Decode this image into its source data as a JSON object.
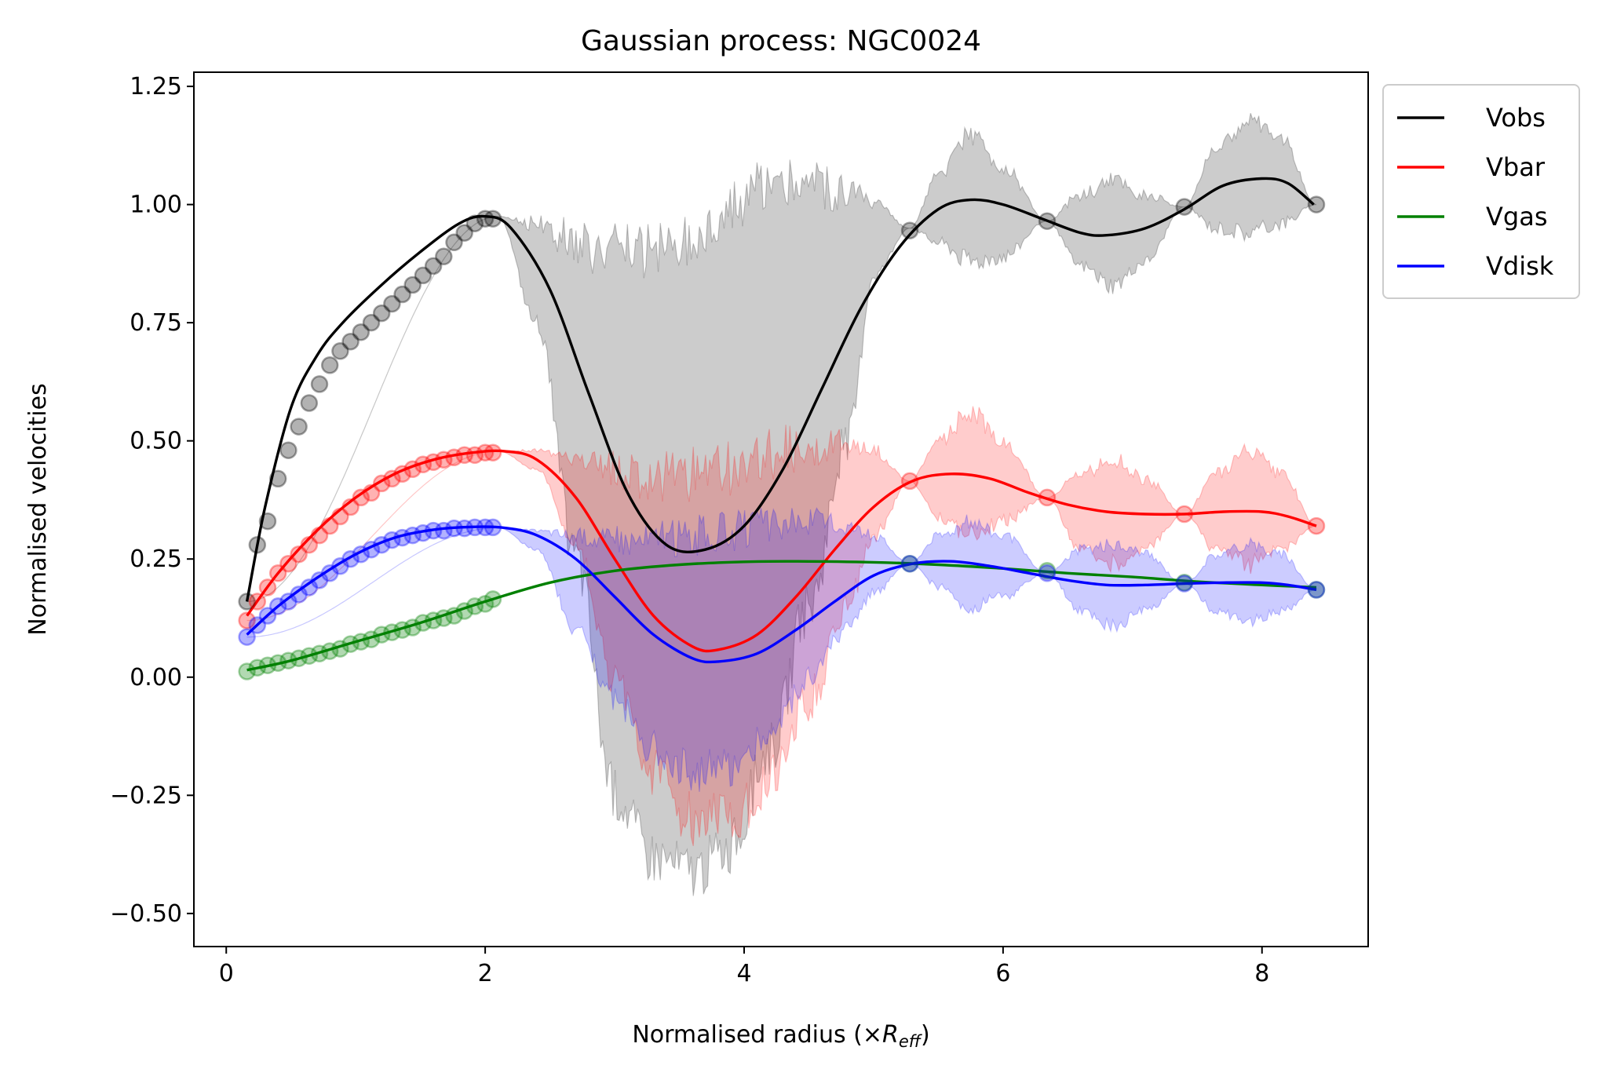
{
  "chart_data": {
    "type": "line",
    "title": "Gaussian process: NGC0024",
    "xlabel_prefix": "Normalised radius (×",
    "xlabel_var": "R",
    "xlabel_sub": "eff",
    "xlabel_suffix": ")",
    "ylabel": "Normalised velocities",
    "xlim": [
      -0.25,
      8.82
    ],
    "ylim": [
      -0.57,
      1.28
    ],
    "xticks": [
      0,
      2,
      4,
      6,
      8
    ],
    "xtick_labels": [
      "0",
      "2",
      "4",
      "6",
      "8"
    ],
    "yticks": [
      -0.5,
      -0.25,
      0.0,
      0.25,
      0.5,
      0.75,
      1.0,
      1.25
    ],
    "ytick_labels": [
      "−0.50",
      "−0.25",
      "0.00",
      "0.25",
      "0.50",
      "0.75",
      "1.00",
      "1.25"
    ],
    "legend_position": "outside-top-right",
    "series": [
      {
        "name": "Vobs",
        "color": "#000000",
        "curve": [
          [
            0.16,
            0.16
          ],
          [
            0.3,
            0.36
          ],
          [
            0.5,
            0.57
          ],
          [
            0.7,
            0.68
          ],
          [
            0.9,
            0.75
          ],
          [
            1.2,
            0.83
          ],
          [
            1.5,
            0.9
          ],
          [
            1.8,
            0.96
          ],
          [
            2.0,
            0.975
          ],
          [
            2.2,
            0.95
          ],
          [
            2.5,
            0.82
          ],
          [
            2.8,
            0.6
          ],
          [
            3.1,
            0.39
          ],
          [
            3.4,
            0.28
          ],
          [
            3.7,
            0.27
          ],
          [
            4.0,
            0.32
          ],
          [
            4.3,
            0.44
          ],
          [
            4.6,
            0.61
          ],
          [
            4.9,
            0.78
          ],
          [
            5.2,
            0.91
          ],
          [
            5.5,
            0.99
          ],
          [
            5.75,
            1.01
          ],
          [
            6.0,
            1.0
          ],
          [
            6.3,
            0.97
          ],
          [
            6.6,
            0.94
          ],
          [
            6.8,
            0.935
          ],
          [
            7.1,
            0.95
          ],
          [
            7.4,
            0.99
          ],
          [
            7.7,
            1.04
          ],
          [
            8.0,
            1.055
          ],
          [
            8.2,
            1.045
          ],
          [
            8.4,
            1.0
          ]
        ],
        "points": [
          [
            0.16,
            0.16
          ],
          [
            0.24,
            0.28
          ],
          [
            0.32,
            0.33
          ],
          [
            0.4,
            0.42
          ],
          [
            0.48,
            0.48
          ],
          [
            0.56,
            0.53
          ],
          [
            0.64,
            0.58
          ],
          [
            0.72,
            0.62
          ],
          [
            0.8,
            0.66
          ],
          [
            0.88,
            0.69
          ],
          [
            0.96,
            0.71
          ],
          [
            1.04,
            0.73
          ],
          [
            1.12,
            0.75
          ],
          [
            1.2,
            0.77
          ],
          [
            1.28,
            0.79
          ],
          [
            1.36,
            0.81
          ],
          [
            1.44,
            0.83
          ],
          [
            1.52,
            0.85
          ],
          [
            1.6,
            0.87
          ],
          [
            1.68,
            0.89
          ],
          [
            1.76,
            0.92
          ],
          [
            1.84,
            0.94
          ],
          [
            1.92,
            0.96
          ],
          [
            2.0,
            0.97
          ],
          [
            2.06,
            0.97
          ],
          [
            5.28,
            0.945
          ],
          [
            6.34,
            0.965
          ],
          [
            7.4,
            0.995
          ],
          [
            8.42,
            1.0
          ]
        ],
        "band": {
          "x": [
            0.16,
            2.1,
            2.4,
            2.7,
            3.0,
            3.3,
            3.6,
            3.9,
            4.2,
            4.5,
            4.8,
            5.0,
            5.28,
            5.5,
            5.75,
            6.0,
            6.34,
            6.6,
            6.85,
            7.1,
            7.4,
            7.65,
            7.9,
            8.15,
            8.42
          ],
          "upper": [
            0.16,
            0.975,
            0.96,
            0.92,
            0.9,
            0.9,
            0.93,
            1.0,
            1.04,
            1.04,
            1.02,
            1.0,
            0.95,
            1.06,
            1.15,
            1.08,
            0.965,
            1.02,
            1.05,
            1.02,
            0.995,
            1.12,
            1.18,
            1.14,
            1.0
          ],
          "lower": [
            0.16,
            0.975,
            0.75,
            0.25,
            -0.25,
            -0.38,
            -0.41,
            -0.36,
            -0.15,
            0.15,
            0.5,
            0.85,
            0.95,
            0.92,
            0.88,
            0.89,
            0.965,
            0.87,
            0.83,
            0.88,
            0.995,
            0.95,
            0.94,
            0.96,
            1.0
          ]
        }
      },
      {
        "name": "Vbar",
        "color": "#ff0000",
        "curve": [
          [
            0.16,
            0.13
          ],
          [
            0.4,
            0.22
          ],
          [
            0.7,
            0.31
          ],
          [
            1.0,
            0.38
          ],
          [
            1.3,
            0.43
          ],
          [
            1.6,
            0.46
          ],
          [
            1.9,
            0.475
          ],
          [
            2.15,
            0.478
          ],
          [
            2.4,
            0.46
          ],
          [
            2.7,
            0.38
          ],
          [
            3.0,
            0.25
          ],
          [
            3.3,
            0.13
          ],
          [
            3.6,
            0.065
          ],
          [
            3.8,
            0.058
          ],
          [
            4.1,
            0.09
          ],
          [
            4.4,
            0.17
          ],
          [
            4.7,
            0.27
          ],
          [
            5.0,
            0.36
          ],
          [
            5.3,
            0.415
          ],
          [
            5.6,
            0.43
          ],
          [
            5.9,
            0.42
          ],
          [
            6.2,
            0.39
          ],
          [
            6.5,
            0.365
          ],
          [
            6.8,
            0.35
          ],
          [
            7.1,
            0.345
          ],
          [
            7.4,
            0.345
          ],
          [
            7.7,
            0.35
          ],
          [
            8.0,
            0.35
          ],
          [
            8.2,
            0.34
          ],
          [
            8.42,
            0.32
          ]
        ],
        "points": [
          [
            0.16,
            0.12
          ],
          [
            0.24,
            0.16
          ],
          [
            0.32,
            0.19
          ],
          [
            0.4,
            0.22
          ],
          [
            0.48,
            0.24
          ],
          [
            0.56,
            0.26
          ],
          [
            0.64,
            0.28
          ],
          [
            0.72,
            0.3
          ],
          [
            0.8,
            0.32
          ],
          [
            0.88,
            0.34
          ],
          [
            0.96,
            0.36
          ],
          [
            1.04,
            0.38
          ],
          [
            1.12,
            0.39
          ],
          [
            1.2,
            0.41
          ],
          [
            1.28,
            0.42
          ],
          [
            1.36,
            0.43
          ],
          [
            1.44,
            0.44
          ],
          [
            1.52,
            0.45
          ],
          [
            1.6,
            0.455
          ],
          [
            1.68,
            0.46
          ],
          [
            1.76,
            0.465
          ],
          [
            1.84,
            0.47
          ],
          [
            1.92,
            0.47
          ],
          [
            2.0,
            0.475
          ],
          [
            2.06,
            0.475
          ],
          [
            5.28,
            0.415
          ],
          [
            6.34,
            0.38
          ],
          [
            7.4,
            0.345
          ],
          [
            8.42,
            0.32
          ]
        ],
        "band": {
          "x": [
            0.16,
            2.1,
            2.4,
            2.7,
            3.0,
            3.3,
            3.6,
            3.9,
            4.2,
            4.5,
            4.8,
            5.0,
            5.28,
            5.5,
            5.75,
            6.0,
            6.34,
            6.6,
            6.85,
            7.1,
            7.4,
            7.65,
            7.9,
            8.15,
            8.42
          ],
          "upper": [
            0.12,
            0.478,
            0.48,
            0.46,
            0.44,
            0.42,
            0.43,
            0.44,
            0.47,
            0.49,
            0.5,
            0.48,
            0.415,
            0.5,
            0.56,
            0.5,
            0.38,
            0.43,
            0.46,
            0.42,
            0.345,
            0.43,
            0.48,
            0.43,
            0.32
          ],
          "lower": [
            0.12,
            0.478,
            0.44,
            0.28,
            0.0,
            -0.2,
            -0.3,
            -0.3,
            -0.22,
            -0.05,
            0.15,
            0.3,
            0.415,
            0.34,
            0.3,
            0.33,
            0.38,
            0.27,
            0.24,
            0.27,
            0.345,
            0.27,
            0.24,
            0.27,
            0.32
          ]
        }
      },
      {
        "name": "Vgas",
        "color": "#008000",
        "curve": [
          [
            0.16,
            0.015
          ],
          [
            0.5,
            0.035
          ],
          [
            1.0,
            0.075
          ],
          [
            1.5,
            0.115
          ],
          [
            2.0,
            0.16
          ],
          [
            2.5,
            0.2
          ],
          [
            3.0,
            0.225
          ],
          [
            3.5,
            0.238
          ],
          [
            4.0,
            0.244
          ],
          [
            4.4,
            0.245
          ],
          [
            5.0,
            0.243
          ],
          [
            5.5,
            0.238
          ],
          [
            6.0,
            0.23
          ],
          [
            6.5,
            0.22
          ],
          [
            7.0,
            0.212
          ],
          [
            7.5,
            0.202
          ],
          [
            8.0,
            0.195
          ],
          [
            8.42,
            0.19
          ]
        ],
        "points": [
          [
            0.16,
            0.012
          ],
          [
            0.24,
            0.02
          ],
          [
            0.32,
            0.025
          ],
          [
            0.4,
            0.03
          ],
          [
            0.48,
            0.035
          ],
          [
            0.56,
            0.04
          ],
          [
            0.64,
            0.045
          ],
          [
            0.72,
            0.05
          ],
          [
            0.8,
            0.055
          ],
          [
            0.88,
            0.06
          ],
          [
            0.96,
            0.07
          ],
          [
            1.04,
            0.075
          ],
          [
            1.12,
            0.08
          ],
          [
            1.2,
            0.09
          ],
          [
            1.28,
            0.095
          ],
          [
            1.36,
            0.1
          ],
          [
            1.44,
            0.105
          ],
          [
            1.52,
            0.115
          ],
          [
            1.6,
            0.12
          ],
          [
            1.68,
            0.125
          ],
          [
            1.76,
            0.13
          ],
          [
            1.84,
            0.14
          ],
          [
            1.92,
            0.15
          ],
          [
            2.0,
            0.155
          ],
          [
            2.06,
            0.165
          ],
          [
            5.28,
            0.24
          ],
          [
            6.34,
            0.225
          ],
          [
            7.4,
            0.2
          ],
          [
            8.42,
            0.185
          ]
        ]
      },
      {
        "name": "Vdisk",
        "color": "#0000ff",
        "curve": [
          [
            0.16,
            0.09
          ],
          [
            0.4,
            0.15
          ],
          [
            0.7,
            0.21
          ],
          [
            1.0,
            0.26
          ],
          [
            1.3,
            0.295
          ],
          [
            1.6,
            0.312
          ],
          [
            1.9,
            0.318
          ],
          [
            2.15,
            0.316
          ],
          [
            2.4,
            0.3
          ],
          [
            2.7,
            0.25
          ],
          [
            3.0,
            0.17
          ],
          [
            3.3,
            0.09
          ],
          [
            3.6,
            0.04
          ],
          [
            3.8,
            0.033
          ],
          [
            4.1,
            0.05
          ],
          [
            4.4,
            0.1
          ],
          [
            4.7,
            0.16
          ],
          [
            5.0,
            0.215
          ],
          [
            5.3,
            0.24
          ],
          [
            5.6,
            0.245
          ],
          [
            5.9,
            0.235
          ],
          [
            6.2,
            0.22
          ],
          [
            6.5,
            0.205
          ],
          [
            6.8,
            0.195
          ],
          [
            7.1,
            0.195
          ],
          [
            7.4,
            0.198
          ],
          [
            7.7,
            0.2
          ],
          [
            8.0,
            0.2
          ],
          [
            8.2,
            0.195
          ],
          [
            8.42,
            0.185
          ]
        ],
        "points": [
          [
            0.16,
            0.085
          ],
          [
            0.24,
            0.11
          ],
          [
            0.32,
            0.13
          ],
          [
            0.4,
            0.15
          ],
          [
            0.48,
            0.16
          ],
          [
            0.56,
            0.175
          ],
          [
            0.64,
            0.19
          ],
          [
            0.72,
            0.205
          ],
          [
            0.8,
            0.22
          ],
          [
            0.88,
            0.235
          ],
          [
            0.96,
            0.25
          ],
          [
            1.04,
            0.26
          ],
          [
            1.12,
            0.27
          ],
          [
            1.2,
            0.28
          ],
          [
            1.28,
            0.29
          ],
          [
            1.36,
            0.295
          ],
          [
            1.44,
            0.3
          ],
          [
            1.52,
            0.305
          ],
          [
            1.6,
            0.31
          ],
          [
            1.68,
            0.31
          ],
          [
            1.76,
            0.315
          ],
          [
            1.84,
            0.315
          ],
          [
            1.92,
            0.317
          ],
          [
            2.0,
            0.317
          ],
          [
            2.06,
            0.317
          ],
          [
            5.28,
            0.24
          ],
          [
            6.34,
            0.22
          ],
          [
            7.4,
            0.198
          ],
          [
            8.42,
            0.185
          ]
        ],
        "band": {
          "x": [
            0.16,
            2.1,
            2.4,
            2.7,
            3.0,
            3.3,
            3.6,
            3.9,
            4.2,
            4.5,
            4.8,
            5.0,
            5.28,
            5.5,
            5.75,
            6.0,
            6.34,
            6.6,
            6.85,
            7.1,
            7.4,
            7.65,
            7.9,
            8.15,
            8.42
          ],
          "upper": [
            0.085,
            0.316,
            0.31,
            0.3,
            0.29,
            0.29,
            0.3,
            0.31,
            0.32,
            0.33,
            0.32,
            0.3,
            0.24,
            0.3,
            0.33,
            0.3,
            0.22,
            0.27,
            0.28,
            0.26,
            0.198,
            0.26,
            0.28,
            0.26,
            0.185
          ],
          "lower": [
            0.085,
            0.316,
            0.27,
            0.1,
            -0.05,
            -0.15,
            -0.2,
            -0.19,
            -0.12,
            0.0,
            0.1,
            0.18,
            0.24,
            0.19,
            0.15,
            0.17,
            0.22,
            0.14,
            0.11,
            0.14,
            0.198,
            0.14,
            0.12,
            0.14,
            0.185
          ]
        }
      }
    ]
  }
}
